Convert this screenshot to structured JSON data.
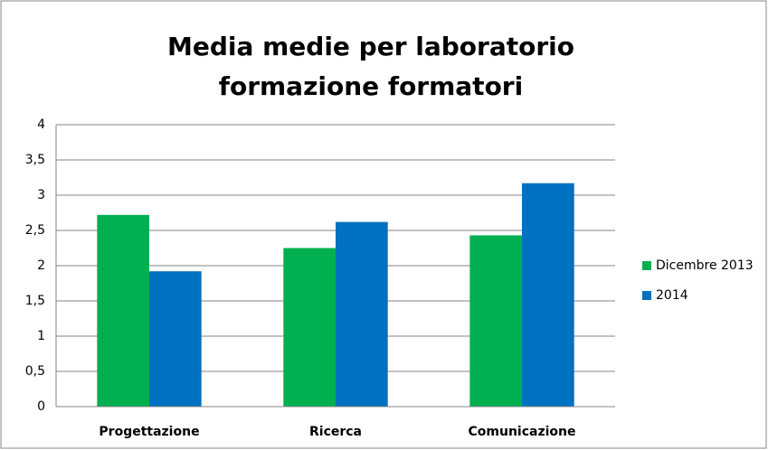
{
  "chart_data": {
    "type": "bar",
    "title": "Media medie per laboratorio formazione formatori",
    "categories": [
      "Progettazione",
      "Ricerca",
      "Comunicazione"
    ],
    "series": [
      {
        "name": "Dicembre 2013",
        "color": "#00b050",
        "values": [
          2.72,
          2.25,
          2.43
        ]
      },
      {
        "name": "2014",
        "color": "#0070c0",
        "values": [
          1.92,
          2.62,
          3.17
        ]
      }
    ],
    "ylim": [
      0,
      4
    ],
    "yticks": [
      0,
      {
        "value": 0.5,
        "label": "0,5"
      },
      1,
      {
        "value": 1.5,
        "label": "1,5"
      },
      2,
      {
        "value": 2.5,
        "label": "2,5"
      },
      3,
      {
        "value": 3.5,
        "label": "3,5"
      },
      4
    ],
    "grid": true,
    "legend": "right"
  }
}
